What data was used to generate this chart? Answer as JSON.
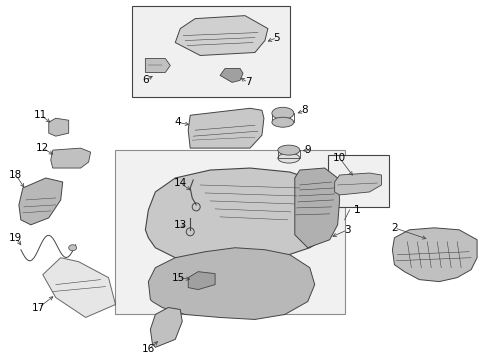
{
  "bg_color": "#ffffff",
  "fig_width": 4.89,
  "fig_height": 3.6,
  "dpi": 100,
  "lc": "#444444",
  "lc_thin": "#666666",
  "fill_light": "#d8d8d8",
  "fill_mid": "#c0c0c0",
  "fill_dark": "#a0a0a0"
}
